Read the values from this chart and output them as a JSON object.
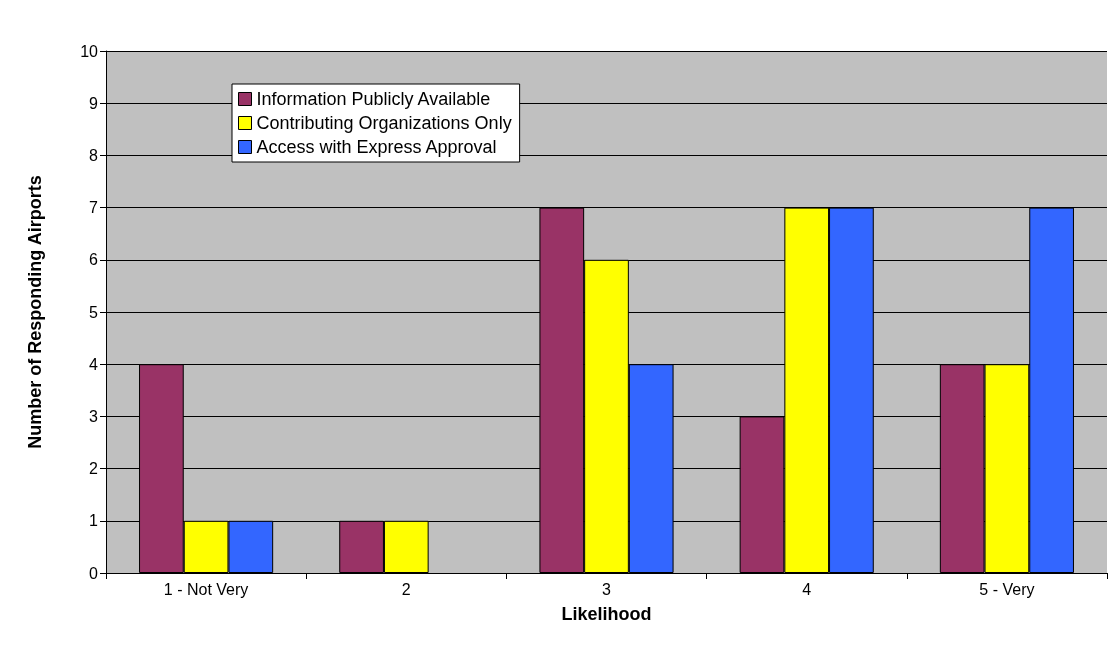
{
  "chart_data": {
    "type": "bar",
    "xlabel": "Likelihood",
    "ylabel": "Number of Responding Airports",
    "categories": [
      "1 - Not Very",
      "2",
      "3",
      "4",
      "5 - Very"
    ],
    "series": [
      {
        "name": "Information Publicly Available",
        "color": "#993366",
        "values": [
          4,
          1,
          7,
          3,
          4
        ]
      },
      {
        "name": "Contributing Organizations Only",
        "color": "#ffff00",
        "values": [
          1,
          1,
          6,
          7,
          4
        ]
      },
      {
        "name": "Access with Express Approval",
        "color": "#3366ff",
        "values": [
          1,
          null,
          4,
          7,
          7
        ]
      }
    ],
    "ylim": [
      0,
      10
    ],
    "yticks": [
      0,
      1,
      2,
      3,
      4,
      5,
      6,
      7,
      8,
      9,
      10
    ],
    "grid": "y",
    "legend": "top left"
  }
}
